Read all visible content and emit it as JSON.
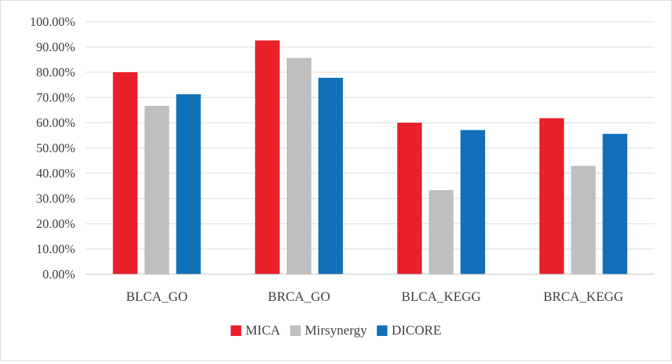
{
  "chart_data": {
    "type": "bar",
    "title": "",
    "xlabel": "",
    "ylabel": "",
    "categories": [
      "BLCA_GO",
      "BRCA_GO",
      "BLCA_KEGG",
      "BRCA_KEGG"
    ],
    "series": [
      {
        "name": "MICA",
        "color": "#e8202a",
        "values": [
          80.0,
          92.6,
          60.0,
          61.8
        ]
      },
      {
        "name": "Mirsynergy",
        "color": "#bfbfbf",
        "values": [
          66.7,
          85.7,
          33.3,
          42.9
        ]
      },
      {
        "name": "DICORE",
        "color": "#1170b8",
        "values": [
          71.3,
          77.8,
          57.1,
          55.6
        ]
      }
    ],
    "yticks": [
      "0.00%",
      "10.00%",
      "20.00%",
      "30.00%",
      "40.00%",
      "50.00%",
      "60.00%",
      "70.00%",
      "80.00%",
      "90.00%",
      "100.00%"
    ],
    "ylim": [
      0,
      100
    ],
    "grid": true,
    "legend_position": "bottom"
  }
}
